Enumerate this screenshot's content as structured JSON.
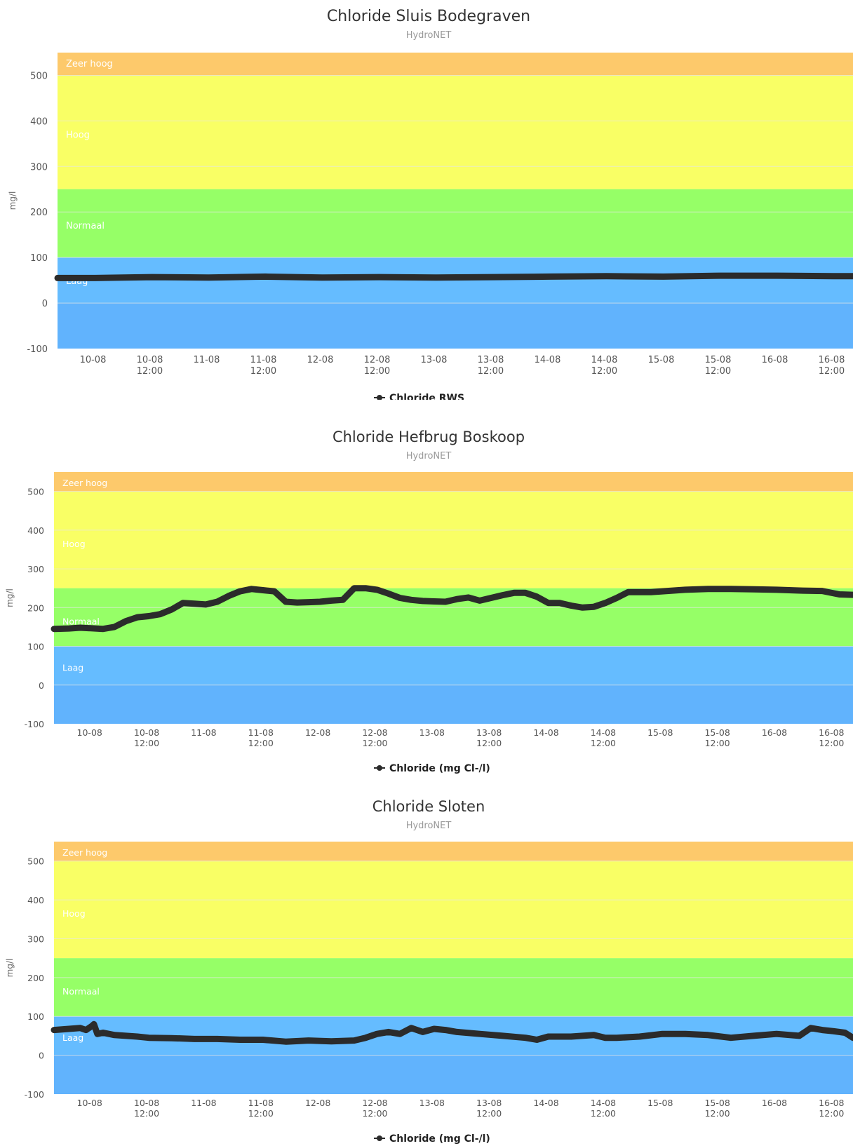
{
  "colors": {
    "zeer_hoog": "#fdc96b",
    "hoog": "#f9ff65",
    "normaal": "#96ff67",
    "laag": "#65bcff",
    "laag_lower": "#61b3fd",
    "line": "#2b2b2b",
    "gridline": "#e6e6e6"
  },
  "chart_data": [
    {
      "type": "line",
      "title": "Chloride Sluis Bodegraven",
      "subtitle": "HydroNET",
      "ylabel": "mg/l",
      "ylim": [
        -100,
        550
      ],
      "yticks": [
        "500",
        "400",
        "300",
        "200",
        "100",
        "0",
        "-100"
      ],
      "xlim_days": [
        9.67,
        16.67
      ],
      "xticks": [
        {
          "l1": "10-08",
          "l2": ""
        },
        {
          "l1": "10-08",
          "l2": "12:00"
        },
        {
          "l1": "11-08",
          "l2": ""
        },
        {
          "l1": "11-08",
          "l2": "12:00"
        },
        {
          "l1": "12-08",
          "l2": ""
        },
        {
          "l1": "12-08",
          "l2": "12:00"
        },
        {
          "l1": "13-08",
          "l2": ""
        },
        {
          "l1": "13-08",
          "l2": "12:00"
        },
        {
          "l1": "14-08",
          "l2": ""
        },
        {
          "l1": "14-08",
          "l2": "12:00"
        },
        {
          "l1": "15-08",
          "l2": ""
        },
        {
          "l1": "15-08",
          "l2": "12:00"
        },
        {
          "l1": "16-08",
          "l2": ""
        },
        {
          "l1": "16-08",
          "l2": "12:00"
        }
      ],
      "bands": [
        {
          "label": "Zeer hoog",
          "from": 500,
          "to": 550
        },
        {
          "label": "Hoog",
          "from": 250,
          "to": 500
        },
        {
          "label": "Normaal",
          "from": 100,
          "to": 250
        },
        {
          "label": "Laag",
          "from": -100,
          "to": 100
        }
      ],
      "legend": "Chloride RWS",
      "series": [
        {
          "name": "Chloride RWS",
          "x": [
            9.67,
            10.0,
            10.5,
            11.0,
            11.5,
            12.0,
            12.5,
            13.0,
            13.5,
            14.0,
            14.5,
            15.0,
            15.5,
            16.0,
            16.5,
            16.67
          ],
          "y": [
            55,
            55,
            57,
            56,
            58,
            56,
            57,
            56,
            57,
            58,
            59,
            58,
            60,
            60,
            59,
            59
          ]
        }
      ]
    },
    {
      "type": "line",
      "title": "Chloride Hefbrug Boskoop",
      "subtitle": "HydroNET",
      "ylabel": "mg/l",
      "ylim": [
        -100,
        550
      ],
      "yticks": [
        "500",
        "400",
        "300",
        "200",
        "100",
        "0",
        "-100"
      ],
      "xlim_days": [
        9.67,
        16.67
      ],
      "xticks": [
        {
          "l1": "10-08",
          "l2": ""
        },
        {
          "l1": "10-08",
          "l2": "12:00"
        },
        {
          "l1": "11-08",
          "l2": ""
        },
        {
          "l1": "11-08",
          "l2": "12:00"
        },
        {
          "l1": "12-08",
          "l2": ""
        },
        {
          "l1": "12-08",
          "l2": "12:00"
        },
        {
          "l1": "13-08",
          "l2": ""
        },
        {
          "l1": "13-08",
          "l2": "12:00"
        },
        {
          "l1": "14-08",
          "l2": ""
        },
        {
          "l1": "14-08",
          "l2": "12:00"
        },
        {
          "l1": "15-08",
          "l2": ""
        },
        {
          "l1": "15-08",
          "l2": "12:00"
        },
        {
          "l1": "16-08",
          "l2": ""
        },
        {
          "l1": "16-08",
          "l2": "12:00"
        }
      ],
      "bands": [
        {
          "label": "Zeer hoog",
          "from": 500,
          "to": 550
        },
        {
          "label": "Hoog",
          "from": 250,
          "to": 500
        },
        {
          "label": "Normaal",
          "from": 100,
          "to": 250
        },
        {
          "label": "Laag",
          "from": -100,
          "to": 100
        }
      ],
      "legend": "Chloride (mg Cl-/l)",
      "series": [
        {
          "name": "Chloride (mg Cl-/l)",
          "x": [
            9.67,
            9.8,
            9.9,
            10.1,
            10.2,
            10.3,
            10.4,
            10.5,
            10.6,
            10.7,
            10.8,
            10.9,
            11.0,
            11.1,
            11.2,
            11.3,
            11.4,
            11.5,
            11.6,
            11.7,
            11.8,
            11.9,
            12.0,
            12.1,
            12.2,
            12.3,
            12.4,
            12.5,
            12.6,
            12.7,
            12.8,
            12.9,
            13.0,
            13.1,
            13.2,
            13.3,
            13.4,
            13.5,
            13.6,
            13.7,
            13.8,
            13.9,
            14.0,
            14.1,
            14.2,
            14.3,
            14.4,
            14.5,
            14.6,
            14.7,
            14.8,
            14.9,
            15.0,
            15.2,
            15.4,
            15.6,
            15.8,
            16.0,
            16.2,
            16.4,
            16.55,
            16.67
          ],
          "y": [
            145,
            146,
            148,
            145,
            150,
            165,
            175,
            178,
            183,
            195,
            212,
            210,
            208,
            215,
            230,
            242,
            248,
            245,
            242,
            215,
            213,
            214,
            215,
            218,
            220,
            250,
            250,
            246,
            236,
            225,
            220,
            217,
            216,
            215,
            222,
            226,
            218,
            225,
            232,
            238,
            238,
            228,
            212,
            212,
            205,
            200,
            202,
            212,
            225,
            240,
            240,
            240,
            242,
            246,
            248,
            248,
            247,
            246,
            244,
            243,
            234,
            233
          ]
        }
      ]
    },
    {
      "type": "line",
      "title": "Chloride Sloten",
      "subtitle": "HydroNET",
      "ylabel": "mg/l",
      "ylim": [
        -100,
        550
      ],
      "yticks": [
        "500",
        "400",
        "300",
        "200",
        "100",
        "0",
        "-100"
      ],
      "xlim_days": [
        9.67,
        16.67
      ],
      "xticks": [
        {
          "l1": "10-08",
          "l2": ""
        },
        {
          "l1": "10-08",
          "l2": "12:00"
        },
        {
          "l1": "11-08",
          "l2": ""
        },
        {
          "l1": "11-08",
          "l2": "12:00"
        },
        {
          "l1": "12-08",
          "l2": ""
        },
        {
          "l1": "12-08",
          "l2": "12:00"
        },
        {
          "l1": "13-08",
          "l2": ""
        },
        {
          "l1": "13-08",
          "l2": "12:00"
        },
        {
          "l1": "14-08",
          "l2": ""
        },
        {
          "l1": "14-08",
          "l2": "12:00"
        },
        {
          "l1": "15-08",
          "l2": ""
        },
        {
          "l1": "15-08",
          "l2": "12:00"
        },
        {
          "l1": "16-08",
          "l2": ""
        },
        {
          "l1": "16-08",
          "l2": "12:00"
        }
      ],
      "bands": [
        {
          "label": "Zeer hoog",
          "from": 500,
          "to": 550
        },
        {
          "label": "Hoog",
          "from": 250,
          "to": 500
        },
        {
          "label": "Normaal",
          "from": 100,
          "to": 250
        },
        {
          "label": "Laag",
          "from": -100,
          "to": 100
        }
      ],
      "legend": "Chloride (mg Cl-/l)",
      "series": [
        {
          "name": "Chloride (mg Cl-/l)",
          "x": [
            9.67,
            9.8,
            9.9,
            9.95,
            10.0,
            10.02,
            10.05,
            10.1,
            10.2,
            10.3,
            10.4,
            10.5,
            10.7,
            10.9,
            11.1,
            11.3,
            11.5,
            11.7,
            11.9,
            12.1,
            12.3,
            12.4,
            12.5,
            12.6,
            12.7,
            12.8,
            12.9,
            13.0,
            13.1,
            13.2,
            13.4,
            13.6,
            13.8,
            13.9,
            14.0,
            14.2,
            14.4,
            14.5,
            14.6,
            14.8,
            15.0,
            15.2,
            15.4,
            15.6,
            15.8,
            16.0,
            16.2,
            16.3,
            16.4,
            16.5,
            16.6,
            16.67
          ],
          "y": [
            65,
            68,
            70,
            65,
            75,
            80,
            55,
            58,
            52,
            50,
            48,
            45,
            44,
            42,
            42,
            40,
            40,
            35,
            38,
            36,
            38,
            45,
            55,
            60,
            55,
            70,
            60,
            68,
            65,
            60,
            55,
            50,
            45,
            40,
            48,
            48,
            52,
            45,
            45,
            48,
            55,
            55,
            52,
            45,
            50,
            55,
            50,
            70,
            65,
            62,
            58,
            45
          ]
        }
      ]
    }
  ]
}
